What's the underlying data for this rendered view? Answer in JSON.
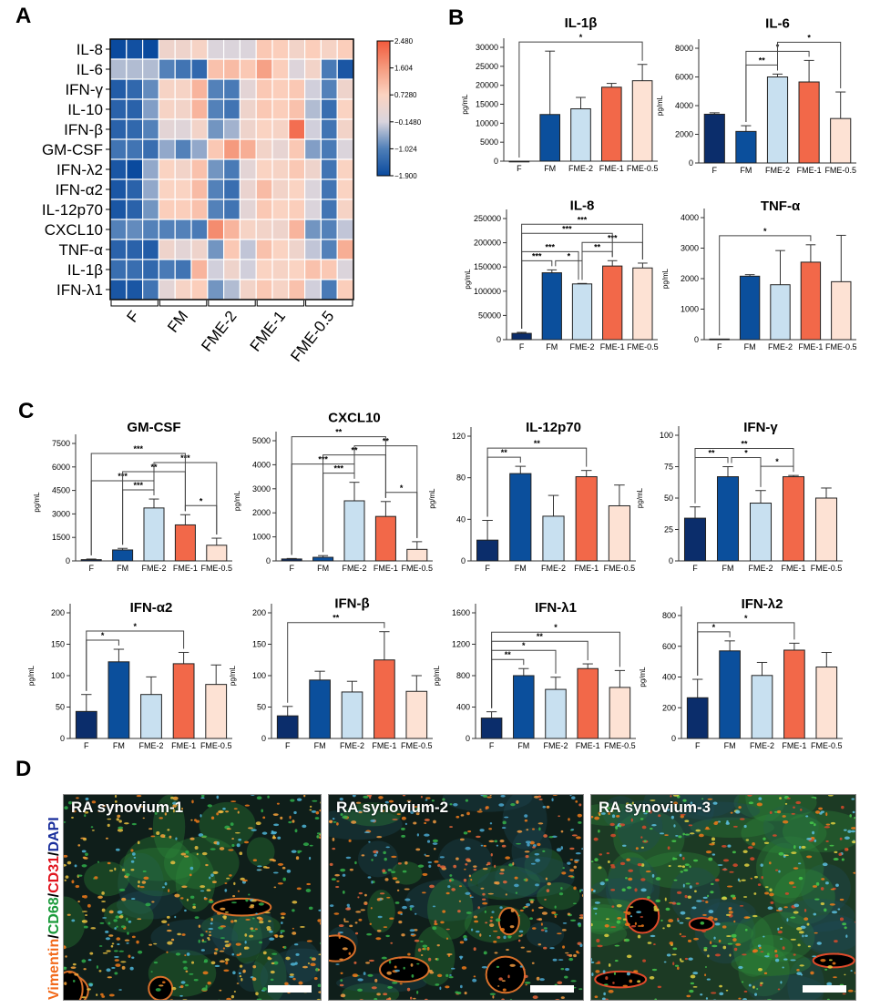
{
  "panels": {
    "a": "A",
    "b": "B",
    "c": "C",
    "d": "D"
  },
  "colors": {
    "F": "#0b2d6b",
    "FM": "#0b4f9c",
    "FME-2": "#c8e0f0",
    "FME-1": "#f26849",
    "FME-0.5": "#fde2d4"
  },
  "chart_data": [
    {
      "type": "heatmap",
      "panel": "A",
      "row_labels": [
        "IL-8",
        "IL-6",
        "IFN-γ",
        "IL-10",
        "IFN-β",
        "GM-CSF",
        "IFN-λ2",
        "IFN-α2",
        "IL-12p70",
        "CXCL10",
        "TNF-α",
        "IL-1β",
        "IFN-λ1"
      ],
      "group_labels": [
        "F",
        "FM",
        "FME-2",
        "FME-1",
        "FME-0.5"
      ],
      "replicates_per_group": 3,
      "values": [
        [
          -1.9,
          -1.8,
          -1.9,
          0.4,
          0.4,
          0.6,
          -0.1,
          -0.1,
          -0.1,
          0.9,
          0.8,
          0.5,
          0.8,
          0.6,
          0.8
        ],
        [
          -0.4,
          -0.4,
          -0.4,
          -1.0,
          -1.2,
          -1.4,
          1.0,
          1.1,
          0.9,
          1.5,
          0.8,
          -0.05,
          0.5,
          -1.1,
          -1.7
        ],
        [
          -1.6,
          -1.4,
          -0.9,
          0.6,
          0.6,
          1.2,
          -1.0,
          -1.1,
          0.1,
          0.9,
          0.8,
          0.9,
          -0.2,
          -1.0,
          0.4
        ],
        [
          -1.5,
          -1.5,
          -0.7,
          0.6,
          0.5,
          1.2,
          -1.0,
          -1.2,
          0.4,
          0.9,
          0.8,
          1.0,
          -0.4,
          -1.3,
          0.7
        ],
        [
          -1.5,
          -1.4,
          -1.0,
          0.1,
          0.0,
          0.5,
          -0.8,
          -0.5,
          0.4,
          0.7,
          0.6,
          2.2,
          -0.2,
          -1.2,
          0.5
        ],
        [
          -1.2,
          -1.2,
          -1.3,
          -0.6,
          -1.0,
          -0.6,
          0.9,
          1.6,
          1.3,
          0.5,
          0.2,
          0.9,
          -0.7,
          -1.1,
          -0.1
        ],
        [
          -1.7,
          -1.9,
          -0.6,
          0.7,
          0.5,
          1.0,
          -0.8,
          -1.1,
          0.1,
          0.7,
          0.6,
          0.9,
          0.4,
          -1.2,
          0.7
        ],
        [
          -1.7,
          -1.5,
          -0.6,
          0.7,
          0.7,
          1.1,
          -1.0,
          -1.3,
          0.3,
          1.1,
          0.5,
          0.7,
          -0.1,
          -1.2,
          0.7
        ],
        [
          -1.7,
          -1.5,
          -0.8,
          0.8,
          0.8,
          1.0,
          -1.0,
          -1.2,
          0.1,
          0.9,
          0.7,
          0.8,
          -0.1,
          -1.2,
          0.6
        ],
        [
          -1.0,
          -0.9,
          -1.0,
          -1.0,
          -1.0,
          -1.1,
          1.8,
          1.2,
          0.6,
          0.5,
          0.4,
          1.2,
          -0.8,
          -1.0,
          -0.3
        ],
        [
          -1.5,
          -1.5,
          -1.6,
          0.4,
          0.1,
          0.4,
          -0.8,
          0.9,
          -0.3,
          1.0,
          0.7,
          0.4,
          -0.3,
          -1.0,
          1.3
        ],
        [
          -1.3,
          -1.3,
          -1.4,
          -1.1,
          -1.2,
          1.2,
          -0.2,
          0.4,
          -0.2,
          0.7,
          0.6,
          0.7,
          1.0,
          0.9,
          -0.1
        ],
        [
          -1.7,
          -1.7,
          -1.2,
          0.1,
          0.6,
          0.8,
          -0.8,
          -0.4,
          0.5,
          0.9,
          0.6,
          1.0,
          -0.2,
          -1.1,
          0.8
        ]
      ],
      "colorbar": {
        "min": -1.9,
        "max": 2.48,
        "tick_values": [
          2.48,
          1.604,
          0.728,
          -0.148,
          -1.024,
          -1.9
        ],
        "tick_labels": [
          "2.480",
          "1.604",
          "0.7280",
          "−0.1480",
          "−1.024",
          "−1.900"
        ],
        "colors": [
          "#0a4a9e",
          "#4f7fb8",
          "#d9d4dd",
          "#fbd3c1",
          "#f59a7e",
          "#f25a3c"
        ]
      }
    },
    {
      "type": "bar",
      "panel": "B",
      "title": "IL-1β",
      "ylabel": "pg/mL",
      "categories": [
        "F",
        "FM",
        "FME-2",
        "FME-1",
        "FME-0.5"
      ],
      "values": [
        0,
        12300,
        13800,
        19500,
        21200
      ],
      "error_upper": [
        0,
        29000,
        16800,
        20500,
        25500
      ],
      "ylim": [
        0,
        30000
      ],
      "yticks": [
        0,
        5000,
        10000,
        15000,
        20000,
        25000,
        30000
      ],
      "significance": [
        {
          "from": "F",
          "to": "FME-0.5",
          "label": "*"
        }
      ]
    },
    {
      "type": "bar",
      "panel": "B",
      "title": "IL-6",
      "ylabel": "pg/mL",
      "categories": [
        "F",
        "FM",
        "FME-2",
        "FME-1",
        "FME-0.5"
      ],
      "values": [
        3400,
        2200,
        6000,
        5650,
        3100
      ],
      "error_upper": [
        3500,
        2600,
        6200,
        7150,
        4950
      ],
      "ylim": [
        0,
        8000
      ],
      "yticks": [
        0,
        2000,
        4000,
        6000,
        8000
      ],
      "significance": [
        {
          "from": "FM",
          "to": "FME-2",
          "label": "**"
        },
        {
          "from": "FM",
          "to": "FME-1",
          "label": "*"
        },
        {
          "from": "FME-2",
          "to": "FME-0.5",
          "label": "*"
        }
      ]
    },
    {
      "type": "bar",
      "panel": "B",
      "title": "IL-8",
      "ylabel": "pg/mL",
      "categories": [
        "F",
        "FM",
        "FME-2",
        "FME-1",
        "FME-0.5"
      ],
      "values": [
        13000,
        138000,
        115000,
        152000,
        148000
      ],
      "error_upper": [
        15000,
        144000,
        116000,
        163000,
        158000
      ],
      "ylim": [
        0,
        250000
      ],
      "yticks": [
        0,
        50000,
        100000,
        150000,
        200000,
        250000
      ],
      "significance": [
        {
          "from": "F",
          "to": "FM",
          "label": "***"
        },
        {
          "from": "FM",
          "to": "FME-2",
          "label": "*"
        },
        {
          "from": "FME-2",
          "to": "FME-1",
          "label": "**"
        },
        {
          "from": "F",
          "to": "FME-2",
          "label": "***"
        },
        {
          "from": "FME-2",
          "to": "FME-0.5",
          "label": "***"
        },
        {
          "from": "F",
          "to": "FME-1",
          "label": "***"
        },
        {
          "from": "F",
          "to": "FME-0.5",
          "label": "***"
        }
      ]
    },
    {
      "type": "bar",
      "panel": "B",
      "title": "TNF-α",
      "ylabel": "pg/mL",
      "categories": [
        "F",
        "FM",
        "FME-2",
        "FME-1",
        "FME-0.5"
      ],
      "values": [
        20,
        2080,
        1800,
        2540,
        1900
      ],
      "error_upper": [
        20,
        2130,
        2920,
        3110,
        3420
      ],
      "ylim": [
        0,
        4000
      ],
      "yticks": [
        0,
        1000,
        2000,
        3000,
        4000
      ],
      "significance": [
        {
          "from": "F",
          "to": "FME-1",
          "label": "*"
        }
      ]
    },
    {
      "type": "bar",
      "panel": "C",
      "title": "GM-CSF",
      "ylabel": "pg/mL",
      "categories": [
        "F",
        "FM",
        "FME-2",
        "FME-1",
        "FME-0.5"
      ],
      "values": [
        80,
        700,
        3380,
        2300,
        1000
      ],
      "error_upper": [
        120,
        800,
        3950,
        2950,
        1450
      ],
      "ylim": [
        0,
        7500
      ],
      "yticks": [
        0,
        1500,
        3000,
        4500,
        6000,
        7500
      ],
      "significance": [
        {
          "from": "FM",
          "to": "FME-2",
          "label": "***"
        },
        {
          "from": "FME-1",
          "to": "FME-0.5",
          "label": "*"
        },
        {
          "from": "F",
          "to": "FME-2",
          "label": "***"
        },
        {
          "from": "FM",
          "to": "FME-1",
          "label": "**"
        },
        {
          "from": "FME-2",
          "to": "FME-0.5",
          "label": "***"
        },
        {
          "from": "F",
          "to": "FME-1",
          "label": "***"
        }
      ]
    },
    {
      "type": "bar",
      "panel": "C",
      "title": "CXCL10",
      "ylabel": "pg/mL",
      "categories": [
        "F",
        "FM",
        "FME-2",
        "FME-1",
        "FME-0.5"
      ],
      "values": [
        80,
        150,
        2500,
        1850,
        480
      ],
      "error_upper": [
        100,
        220,
        3270,
        2470,
        800
      ],
      "ylim": [
        0,
        5000
      ],
      "yticks": [
        0,
        1000,
        2000,
        3000,
        4000,
        5000
      ],
      "significance": [
        {
          "from": "FM",
          "to": "FME-2",
          "label": "***"
        },
        {
          "from": "FME-1",
          "to": "FME-0.5",
          "label": "*"
        },
        {
          "from": "F",
          "to": "FME-2",
          "label": "***"
        },
        {
          "from": "FM",
          "to": "FME-1",
          "label": "**"
        },
        {
          "from": "FME-2",
          "to": "FME-0.5",
          "label": "**"
        },
        {
          "from": "F",
          "to": "FME-1",
          "label": "**"
        }
      ]
    },
    {
      "type": "bar",
      "panel": "C",
      "title": "IL-12p70",
      "ylabel": "pg/mL",
      "categories": [
        "F",
        "FM",
        "FME-2",
        "FME-1",
        "FME-0.5"
      ],
      "values": [
        20,
        84,
        43,
        81,
        53
      ],
      "error_upper": [
        39,
        91,
        63,
        87,
        73
      ],
      "ylim": [
        0,
        120
      ],
      "yticks": [
        0,
        40,
        80,
        120
      ],
      "significance": [
        {
          "from": "F",
          "to": "FM",
          "label": "**"
        },
        {
          "from": "F",
          "to": "FME-1",
          "label": "**"
        }
      ]
    },
    {
      "type": "bar",
      "panel": "C",
      "title": "IFN-γ",
      "ylabel": "pg/mL",
      "categories": [
        "F",
        "FM",
        "FME-2",
        "FME-1",
        "FME-0.5"
      ],
      "values": [
        34,
        67,
        46,
        67,
        50
      ],
      "error_upper": [
        43,
        75,
        56,
        68,
        58
      ],
      "ylim": [
        0,
        100
      ],
      "yticks": [
        0,
        25,
        50,
        75,
        100
      ],
      "significance": [
        {
          "from": "F",
          "to": "FM",
          "label": "**"
        },
        {
          "from": "FM",
          "to": "FME-2",
          "label": "*"
        },
        {
          "from": "FME-2",
          "to": "FME-1",
          "label": "*"
        },
        {
          "from": "F",
          "to": "FME-1",
          "label": "**"
        }
      ]
    },
    {
      "type": "bar",
      "panel": "C",
      "title": "IFN-α2",
      "ylabel": "pg/mL",
      "categories": [
        "F",
        "FM",
        "FME-2",
        "FME-1",
        "FME-0.5"
      ],
      "values": [
        43,
        122,
        70,
        119,
        86
      ],
      "error_upper": [
        70,
        142,
        98,
        137,
        117
      ],
      "ylim": [
        0,
        200
      ],
      "yticks": [
        0,
        50,
        100,
        150,
        200
      ],
      "significance": [
        {
          "from": "F",
          "to": "FM",
          "label": "*"
        },
        {
          "from": "F",
          "to": "FME-1",
          "label": "*"
        }
      ]
    },
    {
      "type": "bar",
      "panel": "C",
      "title": "IFN-β",
      "ylabel": "pg/mL",
      "categories": [
        "F",
        "FM",
        "FME-2",
        "FME-1",
        "FME-0.5"
      ],
      "values": [
        36,
        93,
        74,
        125,
        75
      ],
      "error_upper": [
        51,
        107,
        91,
        170,
        100
      ],
      "ylim": [
        0,
        200
      ],
      "yticks": [
        0,
        50,
        100,
        150,
        200
      ],
      "significance": [
        {
          "from": "F",
          "to": "FME-1",
          "label": "**"
        }
      ]
    },
    {
      "type": "bar",
      "panel": "C",
      "title": "IFN-λ1",
      "ylabel": "pg/mL",
      "categories": [
        "F",
        "FM",
        "FME-2",
        "FME-1",
        "FME-0.5"
      ],
      "values": [
        260,
        800,
        625,
        890,
        650
      ],
      "error_upper": [
        340,
        890,
        780,
        950,
        865
      ],
      "ylim": [
        0,
        1600
      ],
      "yticks": [
        0,
        400,
        800,
        1200,
        1600
      ],
      "significance": [
        {
          "from": "F",
          "to": "FM",
          "label": "**"
        },
        {
          "from": "F",
          "to": "FME-2",
          "label": "*"
        },
        {
          "from": "F",
          "to": "FME-1",
          "label": "**"
        },
        {
          "from": "F",
          "to": "FME-0.5",
          "label": "*"
        }
      ]
    },
    {
      "type": "bar",
      "panel": "C",
      "title": "IFN-λ2",
      "ylabel": "pg/mL",
      "categories": [
        "F",
        "FM",
        "FME-2",
        "FME-1",
        "FME-0.5"
      ],
      "values": [
        265,
        570,
        410,
        575,
        465
      ],
      "error_upper": [
        385,
        635,
        495,
        620,
        560
      ],
      "ylim": [
        0,
        800
      ],
      "yticks": [
        0,
        200,
        400,
        600,
        800
      ],
      "significance": [
        {
          "from": "F",
          "to": "FM",
          "label": "*"
        },
        {
          "from": "F",
          "to": "FME-1",
          "label": "*"
        }
      ]
    }
  ],
  "microscopy": {
    "stain_label": {
      "vimentin": "Vimentin",
      "sep1": "/",
      "cd68": "CD68",
      "sep2": "/",
      "cd31": "CD31",
      "sep3": "/",
      "dapi": "DAPI"
    },
    "stain_colors": {
      "vimentin": "#f26a1b",
      "cd68": "#1a9a3a",
      "cd31": "#e0141e",
      "dapi": "#1a2f9c"
    },
    "images": [
      {
        "label": "RA synovium-1"
      },
      {
        "label": "RA synovium-2"
      },
      {
        "label": "RA synovium-3"
      }
    ]
  }
}
